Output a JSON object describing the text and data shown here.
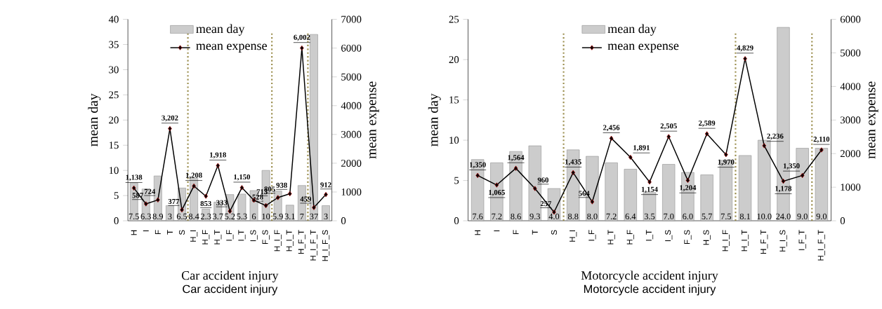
{
  "chart_data": [
    {
      "type": "bar",
      "title": "Car accident injury",
      "xlabel": "Car accident injury",
      "ylabel": "mean  day",
      "y2label": "mean  expense",
      "categories": [
        "H",
        "I",
        "F",
        "T",
        "S",
        "H_I",
        "H_F",
        "H_T",
        "I_F",
        "I_T",
        "I_S",
        "F_S",
        "H_I_F",
        "H_I_T",
        "H_F_T",
        "H_I_F_T",
        "H_I_F_S"
      ],
      "series": [
        {
          "name": "mean day",
          "color": "#cccccc",
          "values": [
            7.5,
            6.3,
            8.9,
            3,
            6.5,
            8.4,
            2.3,
            3.7,
            5.2,
            5.3,
            6,
            10,
            5.9,
            3.1,
            7,
            37,
            3
          ],
          "value_labels": [
            "7.5",
            "6.3",
            "8.9",
            "3",
            "6.5",
            "8.4",
            "2.3",
            "3.7",
            "5.2",
            "5.3",
            "6",
            "10",
            "5.9",
            "3.1",
            "7",
            "37",
            "3"
          ]
        },
        {
          "type": "line",
          "axis": "y2",
          "name": "mean expense",
          "color": "#000000",
          "values": [
            1138,
            587,
            724,
            3202,
            377,
            1208,
            853,
            1918,
            333,
            1150,
            713,
            528,
            805,
            938,
            6002,
            459,
            912
          ],
          "value_labels": [
            "1,138",
            "587",
            "724",
            "3,202",
            "377",
            "1,208",
            "853",
            "1,918",
            "333",
            "1,150",
            "713",
            "528",
            "805",
            "938",
            "6,002",
            "459",
            "912"
          ]
        }
      ],
      "ylim": [
        0,
        40
      ],
      "yticks": [
        0,
        5,
        10,
        15,
        20,
        25,
        30,
        35,
        40
      ],
      "y2lim": [
        0,
        7000
      ],
      "y2ticks": [
        0,
        1000,
        2000,
        3000,
        4000,
        5000,
        6000,
        7000
      ],
      "marker": "diamond",
      "legend": "top"
    },
    {
      "type": "bar",
      "title": "Motorcycle accident injury",
      "xlabel": "Motorcycle accident injury",
      "ylabel": "mean day",
      "y2label": "mean  expense",
      "categories": [
        "H",
        "I",
        "F",
        "T",
        "S",
        "H_I",
        "I_F",
        "H_T",
        "H_F",
        "I_T",
        "I_S",
        "F_S",
        "H_S",
        "H_I_F",
        "H_I_T",
        "H_F_T",
        "H_I_S",
        "I_F_T",
        "H_I_F_T"
      ],
      "series": [
        {
          "name": "mean day",
          "color": "#cccccc",
          "values": [
            7.6,
            7.2,
            8.6,
            9.3,
            4.0,
            8.8,
            8.0,
            7.2,
            6.4,
            3.5,
            7.0,
            6.0,
            5.7,
            7.5,
            8.1,
            10.0,
            24.0,
            9.0,
            9.0
          ],
          "value_labels": [
            "7.6",
            "7.2",
            "8.6",
            "9.3",
            "4.0",
            "8.8",
            "8.0",
            "7.2",
            "6.4",
            "3.5",
            "7.0",
            "6.0",
            "5.7",
            "7.5",
            "8.1",
            "10.0",
            "24.0",
            "9.0",
            "9.0"
          ]
        },
        {
          "type": "line",
          "axis": "y2",
          "name": "mean expense",
          "color": "#000000",
          "values": [
            1350,
            1065,
            1564,
            960,
            257,
            1435,
            564,
            2456,
            1891,
            1154,
            2505,
            1204,
            2589,
            1970,
            4829,
            2236,
            1178,
            1350,
            2110
          ],
          "value_labels": [
            "1,350",
            "1,065",
            "1,564",
            "960",
            "257",
            "1,435",
            "564",
            "2,456",
            "1,891",
            "1,154",
            "2,505",
            "1,204",
            "2,589",
            "1,970",
            "4,829",
            "2,236",
            "1,178",
            "1,350",
            "2,110"
          ]
        }
      ],
      "ylim": [
        0,
        25
      ],
      "yticks": [
        0,
        5,
        10,
        15,
        20,
        25
      ],
      "y2lim": [
        0,
        6000
      ],
      "y2ticks": [
        0,
        1000,
        2000,
        3000,
        4000,
        5000,
        6000
      ],
      "marker": "diamond",
      "legend": "top"
    }
  ]
}
